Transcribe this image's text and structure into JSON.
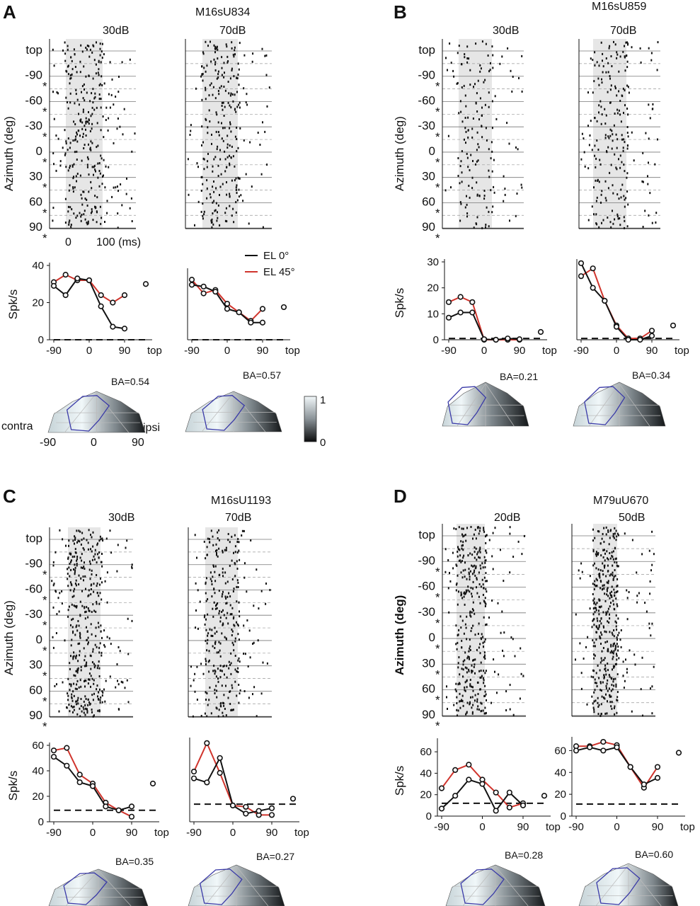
{
  "figure": {
    "panels": [
      {
        "letter": "A",
        "unit": "M16sU834",
        "levels": [
          "30dB",
          "70dB"
        ],
        "ba": [
          "BA=0.54",
          "BA=0.57"
        ],
        "time_axis": [
          "0",
          "100 (ms)"
        ],
        "legend": [
          "EL 0°",
          "EL 45°"
        ],
        "hemifield_labels": [
          "contra",
          "ipsi"
        ],
        "hemifield_ticks": [
          "-90",
          "0",
          "90"
        ],
        "colorbar_ticks": [
          "1",
          "0"
        ]
      },
      {
        "letter": "B",
        "unit": "M16sU859",
        "levels": [
          "30dB",
          "70dB"
        ],
        "ba": [
          "BA=0.21",
          "BA=0.34"
        ]
      },
      {
        "letter": "C",
        "unit": "M16sU1193",
        "levels": [
          "30dB",
          "70dB"
        ],
        "ba": [
          "BA=0.35",
          "BA=0.27"
        ]
      },
      {
        "letter": "D",
        "unit": "M79uU670",
        "levels": [
          "20dB",
          "50dB"
        ],
        "ba": [
          "BA=0.28",
          "BA=0.60"
        ]
      }
    ],
    "raster": {
      "ylabel": "Azimuth (deg)",
      "rows": [
        "top",
        "-90",
        "-60",
        "-30",
        "0",
        "30",
        "60",
        "90"
      ],
      "star": "*"
    },
    "tuning_xticks": [
      "-90",
      "0",
      "90",
      "top"
    ],
    "tuning_ylabel": "Spk/s"
  },
  "chart_data": [
    {
      "type": "line",
      "panel": "A",
      "level": "30dB",
      "ylabel": "Spk/s",
      "ylim": [
        0,
        40
      ],
      "yticks": [
        "0",
        "20",
        "40"
      ],
      "x": [
        -90,
        -60,
        -30,
        0,
        30,
        60,
        90
      ],
      "xticks": [
        "-90",
        "0",
        "90",
        "top"
      ],
      "top_value": 30,
      "spontaneous": 0,
      "series": [
        {
          "name": "EL 0°",
          "color": "#111111",
          "values": [
            29,
            24,
            33,
            32,
            18,
            7,
            6
          ]
        },
        {
          "name": "EL 45°",
          "color": "#d0342c",
          "values": [
            31,
            35,
            32,
            32,
            24,
            20,
            24
          ]
        }
      ]
    },
    {
      "type": "line",
      "panel": "A",
      "level": "70dB",
      "ylabel": "",
      "ylim": [
        0,
        40
      ],
      "yticks": [],
      "x": [
        -90,
        -60,
        -30,
        0,
        30,
        60,
        90
      ],
      "xticks": [
        "-90",
        "0",
        "90",
        "top"
      ],
      "top_value": 19,
      "spontaneous": 0,
      "series": [
        {
          "name": "EL 0°",
          "color": "#111111",
          "values": [
            32,
            31,
            28,
            18,
            16,
            10,
            10
          ]
        },
        {
          "name": "EL 45°",
          "color": "#d0342c",
          "values": [
            35,
            27,
            29,
            21,
            16,
            11,
            18
          ]
        }
      ]
    },
    {
      "type": "line",
      "panel": "B",
      "level": "30dB",
      "ylabel": "Spk/s",
      "ylim": [
        0,
        30
      ],
      "yticks": [
        "0",
        "10",
        "20",
        "30"
      ],
      "x": [
        -90,
        -60,
        -30,
        0,
        30,
        60,
        90
      ],
      "xticks": [
        "-90",
        "0",
        "90",
        "top"
      ],
      "top_value": 3,
      "spontaneous": 0.5,
      "series": [
        {
          "name": "EL 0°",
          "color": "#111111",
          "values": [
            8.5,
            10.5,
            10.5,
            0.2,
            0,
            0.5,
            0.2
          ]
        },
        {
          "name": "EL 45°",
          "color": "#d0342c",
          "values": [
            14.5,
            16.5,
            14.5,
            0,
            0,
            0,
            0
          ]
        }
      ]
    },
    {
      "type": "line",
      "panel": "B",
      "level": "70dB",
      "ylabel": "",
      "ylim": [
        0,
        30
      ],
      "yticks": [],
      "x": [
        -90,
        -60,
        -30,
        0,
        30,
        60,
        90
      ],
      "xticks": [
        "-90",
        "0",
        "90",
        "top"
      ],
      "top_value": 5.5,
      "spontaneous": 0.5,
      "series": [
        {
          "name": "EL 0°",
          "color": "#111111",
          "values": [
            29.5,
            20,
            15,
            5,
            0,
            0,
            1.5
          ]
        },
        {
          "name": "EL 45°",
          "color": "#d0342c",
          "values": [
            24.5,
            27.5,
            15,
            5.5,
            0.5,
            0.5,
            3.5
          ]
        }
      ]
    },
    {
      "type": "line",
      "panel": "C",
      "level": "30dB",
      "ylabel": "Spk/s",
      "ylim": [
        0,
        60
      ],
      "yticks": [
        "0",
        "20",
        "40",
        "60"
      ],
      "x": [
        -90,
        -60,
        -30,
        0,
        30,
        60,
        90
      ],
      "xticks": [
        "-90",
        "0",
        "90",
        "top"
      ],
      "top_value": 30,
      "spontaneous": 9,
      "series": [
        {
          "name": "EL 0°",
          "color": "#111111",
          "values": [
            51,
            44,
            31,
            28,
            12,
            9,
            12
          ]
        },
        {
          "name": "EL 45°",
          "color": "#d0342c",
          "values": [
            56,
            58,
            37,
            30,
            15,
            9,
            4
          ]
        }
      ]
    },
    {
      "type": "line",
      "panel": "C",
      "level": "70dB",
      "ylabel": "",
      "ylim": [
        0,
        60
      ],
      "yticks": [],
      "x": [
        -90,
        -60,
        -30,
        0,
        30,
        60,
        90
      ],
      "xticks": [
        "-90",
        "0",
        "90",
        "top"
      ],
      "top_value": 17,
      "spontaneous": 13,
      "series": [
        {
          "name": "EL 0°",
          "color": "#111111",
          "values": [
            32,
            29,
            47,
            12,
            6,
            8,
            10
          ]
        },
        {
          "name": "EL 45°",
          "color": "#d0342c",
          "values": [
            37,
            58,
            36,
            12,
            11,
            5,
            5
          ]
        }
      ]
    },
    {
      "type": "line",
      "panel": "D",
      "level": "20dB",
      "ylabel": "Spk/s",
      "ylim": [
        0,
        70
      ],
      "yticks": [
        "0",
        "20",
        "40",
        "60"
      ],
      "x": [
        -90,
        -60,
        -30,
        0,
        30,
        60,
        90
      ],
      "xticks": [
        "-90",
        "0",
        "90",
        "top"
      ],
      "top_value": 19,
      "spontaneous": 12,
      "series": [
        {
          "name": "EL 0°",
          "color": "#111111",
          "values": [
            7,
            19,
            34,
            30,
            5,
            22,
            10
          ]
        },
        {
          "name": "EL 45°",
          "color": "#d0342c",
          "values": [
            26,
            43,
            48,
            34,
            22,
            8,
            12
          ]
        }
      ]
    },
    {
      "type": "line",
      "panel": "D",
      "level": "50dB",
      "ylabel": "",
      "ylim": [
        0,
        70
      ],
      "yticks": [
        "0",
        "20",
        "40",
        "60"
      ],
      "x": [
        -90,
        -60,
        -30,
        0,
        30,
        60,
        90
      ],
      "xticks": [
        "-90",
        "0",
        "90",
        "top"
      ],
      "top_value": 58,
      "spontaneous": 11,
      "series": [
        {
          "name": "EL 0°",
          "color": "#111111",
          "values": [
            60,
            63,
            60,
            63,
            45,
            29,
            35
          ]
        },
        {
          "name": "EL 45°",
          "color": "#d0342c",
          "values": [
            64,
            64,
            68,
            65,
            45,
            26,
            45
          ]
        }
      ]
    }
  ]
}
